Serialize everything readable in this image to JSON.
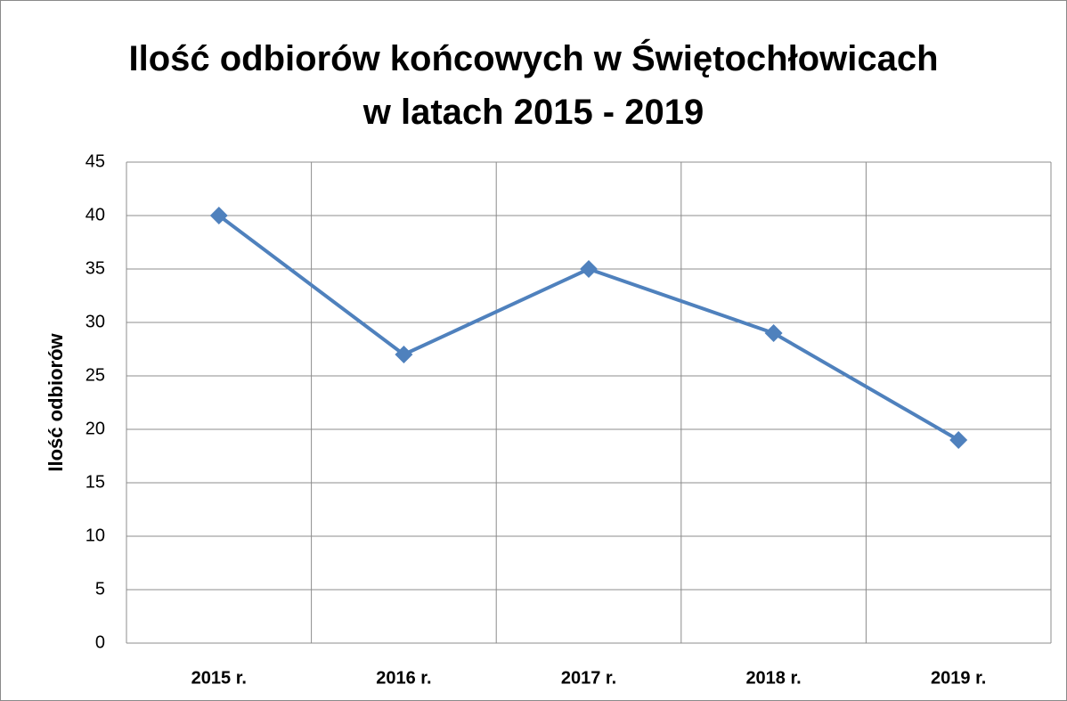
{
  "chart_data": {
    "type": "line",
    "title": "Ilość odbiorów końcowych w Świętochłowicach\nw latach 2015 - 2019",
    "y_label": "Ilość odbiorów",
    "categories": [
      "2015 r.",
      "2016 r.",
      "2017 r.",
      "2018 r.",
      "2019 r."
    ],
    "series": [
      {
        "color": "#4f81bd",
        "values": [
          40,
          27,
          35,
          29,
          19
        ]
      }
    ],
    "ylim": [
      0,
      45
    ],
    "yticks": [
      0,
      5,
      10,
      15,
      20,
      25,
      30,
      35,
      40,
      45
    ],
    "grid": true
  }
}
